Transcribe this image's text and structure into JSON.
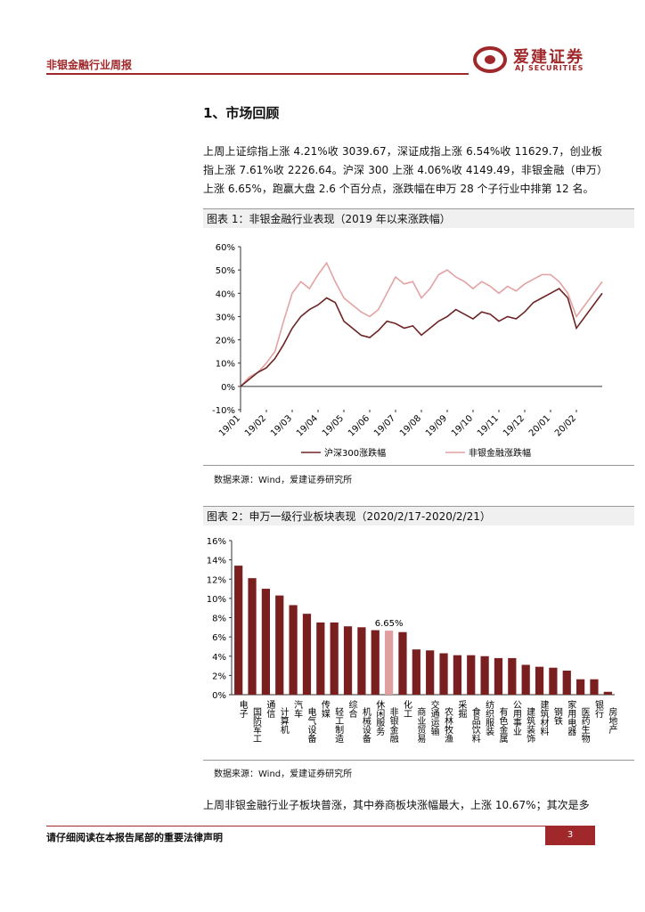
{
  "header": {
    "report_title": "非银金融行业周报",
    "logo_cn": "爱建证券",
    "logo_en": "AJ SECURITIES"
  },
  "section_title": "1、市场回顾",
  "paragraphs": [
    "上周上证综指上涨 4.21%收 3039.67，深证成指上涨 6.54%收 11629.7，创业板指上涨 7.61%收 2226.64。沪深 300 上涨 4.06%收 4149.49，非银金融（申万）上涨 6.65%，跑赢大盘 2.6 个百分点，涨跌幅在申万 28 个子行业中排第 12 名。",
    "上周非银金融行业子板块普涨，其中券商板块涨幅最大，上涨 10.67%；其次是多"
  ],
  "chart_data": [
    {
      "type": "line",
      "title": "图表 1：非银金融行业表现（2019 年以来涨跌幅）",
      "source": "数据来源：Wind，爱建证券研究所",
      "categories": [
        "19/01",
        null,
        null,
        "19/02",
        null,
        null,
        "19/03",
        null,
        null,
        "19/04",
        null,
        null,
        "19/05",
        null,
        null,
        "19/06",
        null,
        null,
        "19/07",
        null,
        null,
        "19/08",
        null,
        null,
        "19/09",
        null,
        null,
        "19/10",
        null,
        null,
        "19/11",
        null,
        null,
        "19/12",
        null,
        null,
        "20/01",
        null,
        null,
        "20/02",
        null,
        null,
        null
      ],
      "series": [
        {
          "name": "沪深300涨跌幅",
          "color": "#6e2424",
          "values": [
            0,
            3,
            6,
            8,
            12,
            18,
            25,
            30,
            33,
            35,
            38,
            36,
            28,
            25,
            22,
            21,
            24,
            28,
            27,
            25,
            26,
            22,
            25,
            28,
            30,
            33,
            31,
            29,
            32,
            31,
            28,
            30,
            29,
            32,
            36,
            38,
            40,
            42,
            38,
            25,
            30,
            35,
            40
          ]
        },
        {
          "name": "非银金融涨跌幅",
          "color": "#e3a3a3",
          "values": [
            0,
            4,
            6,
            10,
            15,
            28,
            40,
            45,
            42,
            48,
            53,
            45,
            38,
            35,
            32,
            30,
            33,
            40,
            47,
            44,
            45,
            38,
            42,
            48,
            50,
            47,
            45,
            42,
            45,
            43,
            40,
            43,
            41,
            44,
            46,
            48,
            48,
            45,
            40,
            30,
            35,
            40,
            45
          ]
        }
      ],
      "ylim": [
        -10,
        60
      ],
      "yticks": [
        {
          "value": -10,
          "label": "-10%"
        },
        {
          "value": 0,
          "label": "0%"
        },
        {
          "value": 10,
          "label": "10%"
        },
        {
          "value": 20,
          "label": "20%"
        },
        {
          "value": 30,
          "label": "30%"
        },
        {
          "value": 40,
          "label": "40%"
        },
        {
          "value": 50,
          "label": "50%"
        },
        {
          "value": 60,
          "label": "60%"
        }
      ]
    },
    {
      "type": "bar",
      "title": "图表 2：申万一级行业板块表现（2020/2/17-2020/2/21）",
      "source": "数据来源：Wind，爱建证券研究所",
      "categories": [
        "电子",
        "国防军工",
        "通信",
        "计算机",
        "汽车",
        "电气设备",
        "传媒",
        "轻工制造",
        "综合",
        "机械设备",
        "休闲服务",
        "非银金融",
        "化工",
        "商业贸易",
        "交通运输",
        "农林牧渔",
        "采掘",
        "食品饮料",
        "纺织服装",
        "有色金属",
        "公用事业",
        "建筑装饰",
        "建筑材料",
        "钢铁",
        "家用电器",
        "医药生物",
        "银行",
        "房地产"
      ],
      "values": [
        13.4,
        12.1,
        11.0,
        10.3,
        9.3,
        8.4,
        7.5,
        7.5,
        7.1,
        7.0,
        6.7,
        6.65,
        6.5,
        4.7,
        4.6,
        4.3,
        4.1,
        4.1,
        4.0,
        3.8,
        3.8,
        3.1,
        2.9,
        2.8,
        2.5,
        1.6,
        1.6,
        0.3
      ],
      "value_labels": [
        null,
        null,
        null,
        null,
        null,
        null,
        null,
        null,
        null,
        null,
        null,
        "6.65%",
        null,
        null,
        null,
        null,
        null,
        null,
        null,
        null,
        null,
        null,
        null,
        null,
        null,
        null,
        null,
        null
      ],
      "colors": [
        "#7a1f1f",
        "#7a1f1f",
        "#7a1f1f",
        "#7a1f1f",
        "#7a1f1f",
        "#7a1f1f",
        "#7a1f1f",
        "#7a1f1f",
        "#7a1f1f",
        "#7a1f1f",
        "#7a1f1f",
        "#e0a0a0",
        "#7a1f1f",
        "#7a1f1f",
        "#7a1f1f",
        "#7a1f1f",
        "#7a1f1f",
        "#7a1f1f",
        "#7a1f1f",
        "#7a1f1f",
        "#7a1f1f",
        "#7a1f1f",
        "#7a1f1f",
        "#7a1f1f",
        "#7a1f1f",
        "#7a1f1f",
        "#7a1f1f",
        "#7a1f1f"
      ],
      "ylim": [
        0,
        16
      ],
      "yticks": [
        {
          "value": 0,
          "label": "0%"
        },
        {
          "value": 2,
          "label": "2%"
        },
        {
          "value": 4,
          "label": "4%"
        },
        {
          "value": 6,
          "label": "6%"
        },
        {
          "value": 8,
          "label": "8%"
        },
        {
          "value": 10,
          "label": "10%"
        },
        {
          "value": 12,
          "label": "12%"
        },
        {
          "value": 14,
          "label": "14%"
        },
        {
          "value": 16,
          "label": "16%"
        }
      ]
    }
  ],
  "footer": {
    "disclaimer": "请仔细阅读在本报告尾部的重要法律声明",
    "page_number": "3"
  }
}
